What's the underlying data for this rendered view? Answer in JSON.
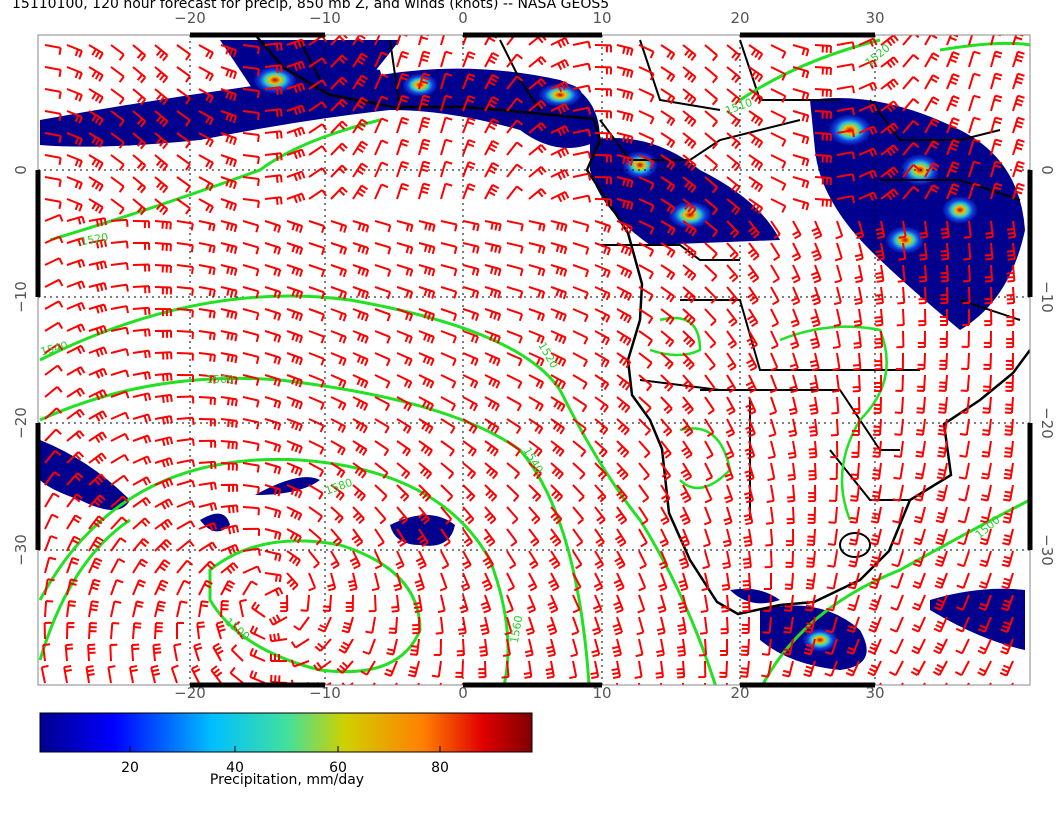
{
  "title": "15110100, 120 hour forecast for precip, 850 mb Z, and winds (knots) -- NASA GEOS5",
  "map": {
    "top_ticks": [
      "−20",
      "−10",
      "0",
      "10",
      "20",
      "30"
    ],
    "bottom_ticks": [
      "−20",
      "−10",
      "0",
      "10",
      "20",
      "30"
    ],
    "left_ticks": [
      "0",
      "−10",
      "−20",
      "−30"
    ],
    "right_ticks": [
      "0",
      "−10",
      "−20",
      "−30"
    ],
    "contour_labels": [
      "1520",
      "1540",
      "1560",
      "1520",
      "1580",
      "1540",
      "1560",
      "1500",
      "1500",
      "1520",
      "1510"
    ]
  },
  "colorbar": {
    "ticks": [
      "20",
      "40",
      "60",
      "80"
    ],
    "label": "Precipitation, mm/day"
  }
}
